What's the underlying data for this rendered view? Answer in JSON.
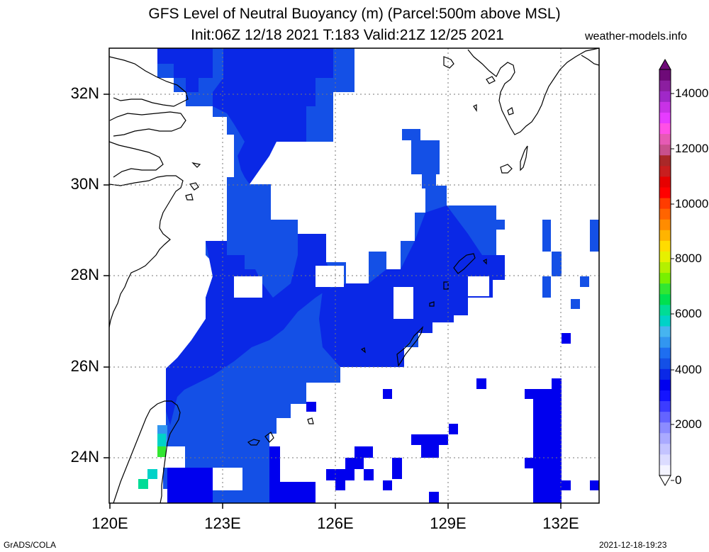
{
  "title_line1": "GFS Level of Neutral Buoyancy (m) (Parcel:500m above MSL)",
  "title_line2": "Init:06Z 12/18 2021 T:183 Valid:21Z 12/25 2021",
  "site": "weather-models.info",
  "footer_left": "GrADS/COLA",
  "footer_right": "2021-12-18-19:23",
  "lat_labels": [
    "32N",
    "30N",
    "28N",
    "26N",
    "24N"
  ],
  "lon_labels": [
    "120E",
    "123E",
    "126E",
    "129E",
    "132E"
  ],
  "colorbar_labels": [
    "14000",
    "12000",
    "10000",
    "8000",
    "6000",
    "4000",
    "2000",
    "0"
  ],
  "colorbar_colors": [
    "#f4f4ff",
    "#dcdcff",
    "#c4c4ff",
    "#aaaaff",
    "#8c8cff",
    "#6464ff",
    "#3c3cff",
    "#1414ff",
    "#0000ee",
    "#0a28e6",
    "#1450e6",
    "#1e6ef0",
    "#3296f0",
    "#46b4f0",
    "#00d2c8",
    "#00dc96",
    "#00e050",
    "#32e632",
    "#78f000",
    "#b4f000",
    "#e6f000",
    "#ffdc00",
    "#ffb400",
    "#ff8c00",
    "#ff6400",
    "#ff3c00",
    "#ff0000",
    "#e60000",
    "#c81e1e",
    "#aa2828",
    "#c8508c",
    "#e65ab4",
    "#ff50e6",
    "#e63cff",
    "#c832e6",
    "#a028c8",
    "#8c1ea0",
    "#6e0a78"
  ],
  "colors": {
    "white": "#ffffff",
    "blue_dark": "#0000ee",
    "blue_mid": "#0a28e6",
    "blue_light": "#1450e6",
    "blue_pale": "#1e6ef0",
    "cyan": "#3296f0",
    "teal": "#00d2c8",
    "green": "#00dc96"
  },
  "field": {
    "lon_range": [
      120,
      133
    ],
    "lat_range": [
      23,
      33
    ],
    "cell_deg": 0.25,
    "cells": [
      {
        "lon": 121.25,
        "lat": 32.75,
        "w": 3.5,
        "h": 0.5,
        "c": "blue_mid"
      },
      {
        "lon": 121.5,
        "lat": 32.25,
        "w": 3.5,
        "h": 0.5,
        "c": "blue_mid"
      },
      {
        "lon": 122.5,
        "lat": 32.75,
        "w": 1.25,
        "h": 0.5,
        "c": "blue_light"
      },
      {
        "lon": 123.25,
        "lat": 31.5,
        "w": 2.75,
        "h": 1.0,
        "c": "blue_mid"
      },
      {
        "lon": 123.25,
        "lat": 30.5,
        "w": 1.5,
        "h": 1.0,
        "c": "blue_mid"
      },
      {
        "lon": 123.25,
        "lat": 29.5,
        "w": 1.25,
        "h": 1.0,
        "c": "blue_mid"
      },
      {
        "lon": 122.75,
        "lat": 28.75,
        "w": 2.25,
        "h": 0.75,
        "c": "blue_mid"
      },
      {
        "lon": 123.0,
        "lat": 28.25,
        "w": 4.0,
        "h": 0.5,
        "c": "blue_light"
      },
      {
        "lon": 122.25,
        "lat": 27.75,
        "w": 1.0,
        "h": 0.5,
        "c": "blue_dark"
      },
      {
        "lon": 122.25,
        "lat": 27.25,
        "w": 5.0,
        "h": 0.5,
        "c": "blue_mid"
      },
      {
        "lon": 122.0,
        "lat": 26.75,
        "w": 5.5,
        "h": 0.5,
        "c": "blue_mid"
      },
      {
        "lon": 121.75,
        "lat": 26.25,
        "w": 5.0,
        "h": 0.5,
        "c": "blue_mid"
      },
      {
        "lon": 121.5,
        "lat": 25.75,
        "w": 3.75,
        "h": 0.5,
        "c": "blue_light"
      },
      {
        "lon": 121.5,
        "lat": 25.25,
        "w": 3.25,
        "h": 0.5,
        "c": "blue_light"
      },
      {
        "lon": 121.5,
        "lat": 24.75,
        "w": 2.75,
        "h": 0.5,
        "c": "blue_light"
      },
      {
        "lon": 121.5,
        "lat": 24.25,
        "w": 2.5,
        "h": 0.5,
        "c": "blue_light"
      },
      {
        "lon": 121.75,
        "lat": 23.75,
        "w": 2.0,
        "h": 0.5,
        "c": "blue_light"
      },
      {
        "lon": 121.5,
        "lat": 23.25,
        "w": 1.25,
        "h": 0.5,
        "c": "blue_light"
      },
      {
        "lon": 124.0,
        "lat": 23.25,
        "w": 1.5,
        "h": 0.5,
        "c": "blue_dark"
      },
      {
        "lon": 124.5,
        "lat": 23.75,
        "w": 1.0,
        "h": 0.5,
        "c": "blue_dark"
      },
      {
        "lon": 126.5,
        "lat": 27.75,
        "w": 2.0,
        "h": 0.5,
        "c": "blue_mid"
      },
      {
        "lon": 128.0,
        "lat": 28.75,
        "w": 2.25,
        "h": 1.5,
        "c": "blue_mid"
      },
      {
        "lon": 128.25,
        "lat": 27.75,
        "w": 2.25,
        "h": 1.0,
        "c": "blue_mid"
      },
      {
        "lon": 128.5,
        "lat": 30.25,
        "w": 0.5,
        "h": 0.75,
        "c": "blue_light"
      },
      {
        "lon": 128.0,
        "lat": 31.0,
        "w": 0.5,
        "h": 0.25,
        "c": "blue_light"
      },
      {
        "lon": 131.25,
        "lat": 24.0,
        "w": 0.75,
        "h": 1.5,
        "c": "blue_dark"
      },
      {
        "lon": 121.5,
        "lat": 24.5,
        "w": 0.25,
        "h": 0.25,
        "c": "cyan"
      },
      {
        "lon": 121.25,
        "lat": 24.25,
        "w": 0.25,
        "h": 0.25,
        "c": "green"
      },
      {
        "lon": 121.0,
        "lat": 23.5,
        "w": 0.25,
        "h": 0.25,
        "c": "teal"
      },
      {
        "lon": 120.75,
        "lat": 23.25,
        "w": 0.25,
        "h": 0.25,
        "c": "green"
      }
    ]
  }
}
